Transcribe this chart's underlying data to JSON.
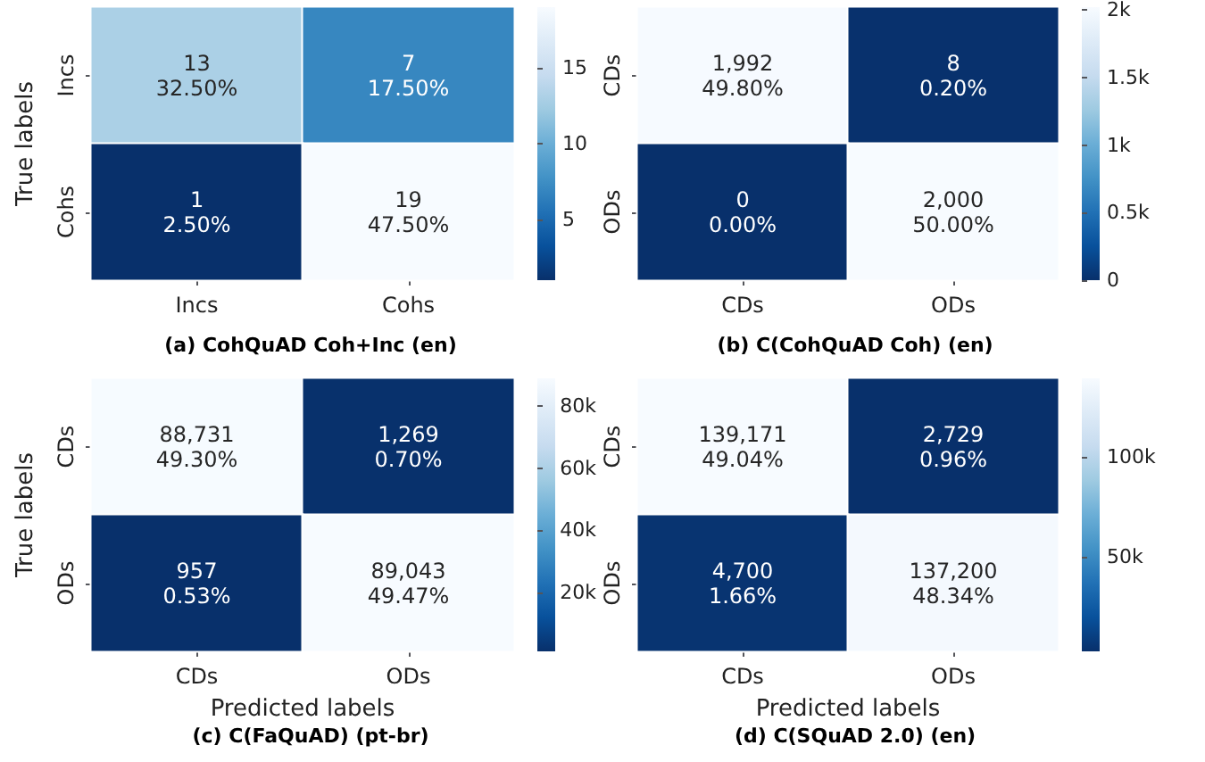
{
  "chart_data": [
    {
      "type": "heatmap",
      "title": "(a) CohQuAD Coh+Inc (en)",
      "ylabel": "True labels",
      "categories": [
        "Incs",
        "Cohs"
      ],
      "y_categories": [
        "Incs",
        "Cohs"
      ],
      "cells": [
        [
          13,
          7
        ],
        [
          1,
          19
        ]
      ],
      "cell_labels": [
        [
          "13\n32.50%",
          "7\n17.50%"
        ],
        [
          "1\n2.50%",
          "19\n47.50%"
        ]
      ],
      "clim": [
        1,
        19
      ],
      "cticks": [
        5,
        10,
        15
      ]
    },
    {
      "type": "heatmap",
      "title": "(b) C(CohQuAD Coh) (en)",
      "categories": [
        "CDs",
        "ODs"
      ],
      "y_categories": [
        "CDs",
        "ODs"
      ],
      "cells": [
        [
          1992,
          8
        ],
        [
          0,
          2000
        ]
      ],
      "cell_labels": [
        [
          "1,992\n49.80%",
          "8\n0.20%"
        ],
        [
          "0\n0.00%",
          "2,000\n50.00%"
        ]
      ],
      "clim": [
        0,
        2000
      ],
      "cticks": [
        0,
        {
          "value": 500,
          "label": "0.5k"
        },
        {
          "value": 1000,
          "label": "1k"
        },
        {
          "value": 1500,
          "label": "1.5k"
        },
        {
          "value": 2000,
          "label": "2k"
        }
      ]
    },
    {
      "type": "heatmap",
      "title": "(c) C(FaQuAD) (pt-br)",
      "xlabel": "Predicted labels",
      "ylabel": "True labels",
      "categories": [
        "CDs",
        "ODs"
      ],
      "y_categories": [
        "CDs",
        "ODs"
      ],
      "cells": [
        [
          88731,
          1269
        ],
        [
          957,
          89043
        ]
      ],
      "cell_labels": [
        [
          "88,731\n49.30%",
          "1,269\n0.70%"
        ],
        [
          "957\n0.53%",
          "89,043\n49.47%"
        ]
      ],
      "clim": [
        957,
        89043
      ],
      "cticks": [
        {
          "value": 20000,
          "label": "20k"
        },
        {
          "value": 40000,
          "label": "40k"
        },
        {
          "value": 60000,
          "label": "60k"
        },
        {
          "value": 80000,
          "label": "80k"
        }
      ]
    },
    {
      "type": "heatmap",
      "title": "(d) C(SQuAD 2.0) (en)",
      "xlabel": "Predicted labels",
      "categories": [
        "CDs",
        "ODs"
      ],
      "y_categories": [
        "CDs",
        "ODs"
      ],
      "cells": [
        [
          139171,
          2729
        ],
        [
          4700,
          137200
        ]
      ],
      "cell_labels": [
        [
          "139,171\n49.04%",
          "2,729\n0.96%"
        ],
        [
          "4,700\n1.66%",
          "137,200\n48.34%"
        ]
      ],
      "clim": [
        2729,
        139171
      ],
      "cticks": [
        {
          "value": 50000,
          "label": "50k"
        },
        {
          "value": 100000,
          "label": "100k"
        }
      ]
    }
  ]
}
